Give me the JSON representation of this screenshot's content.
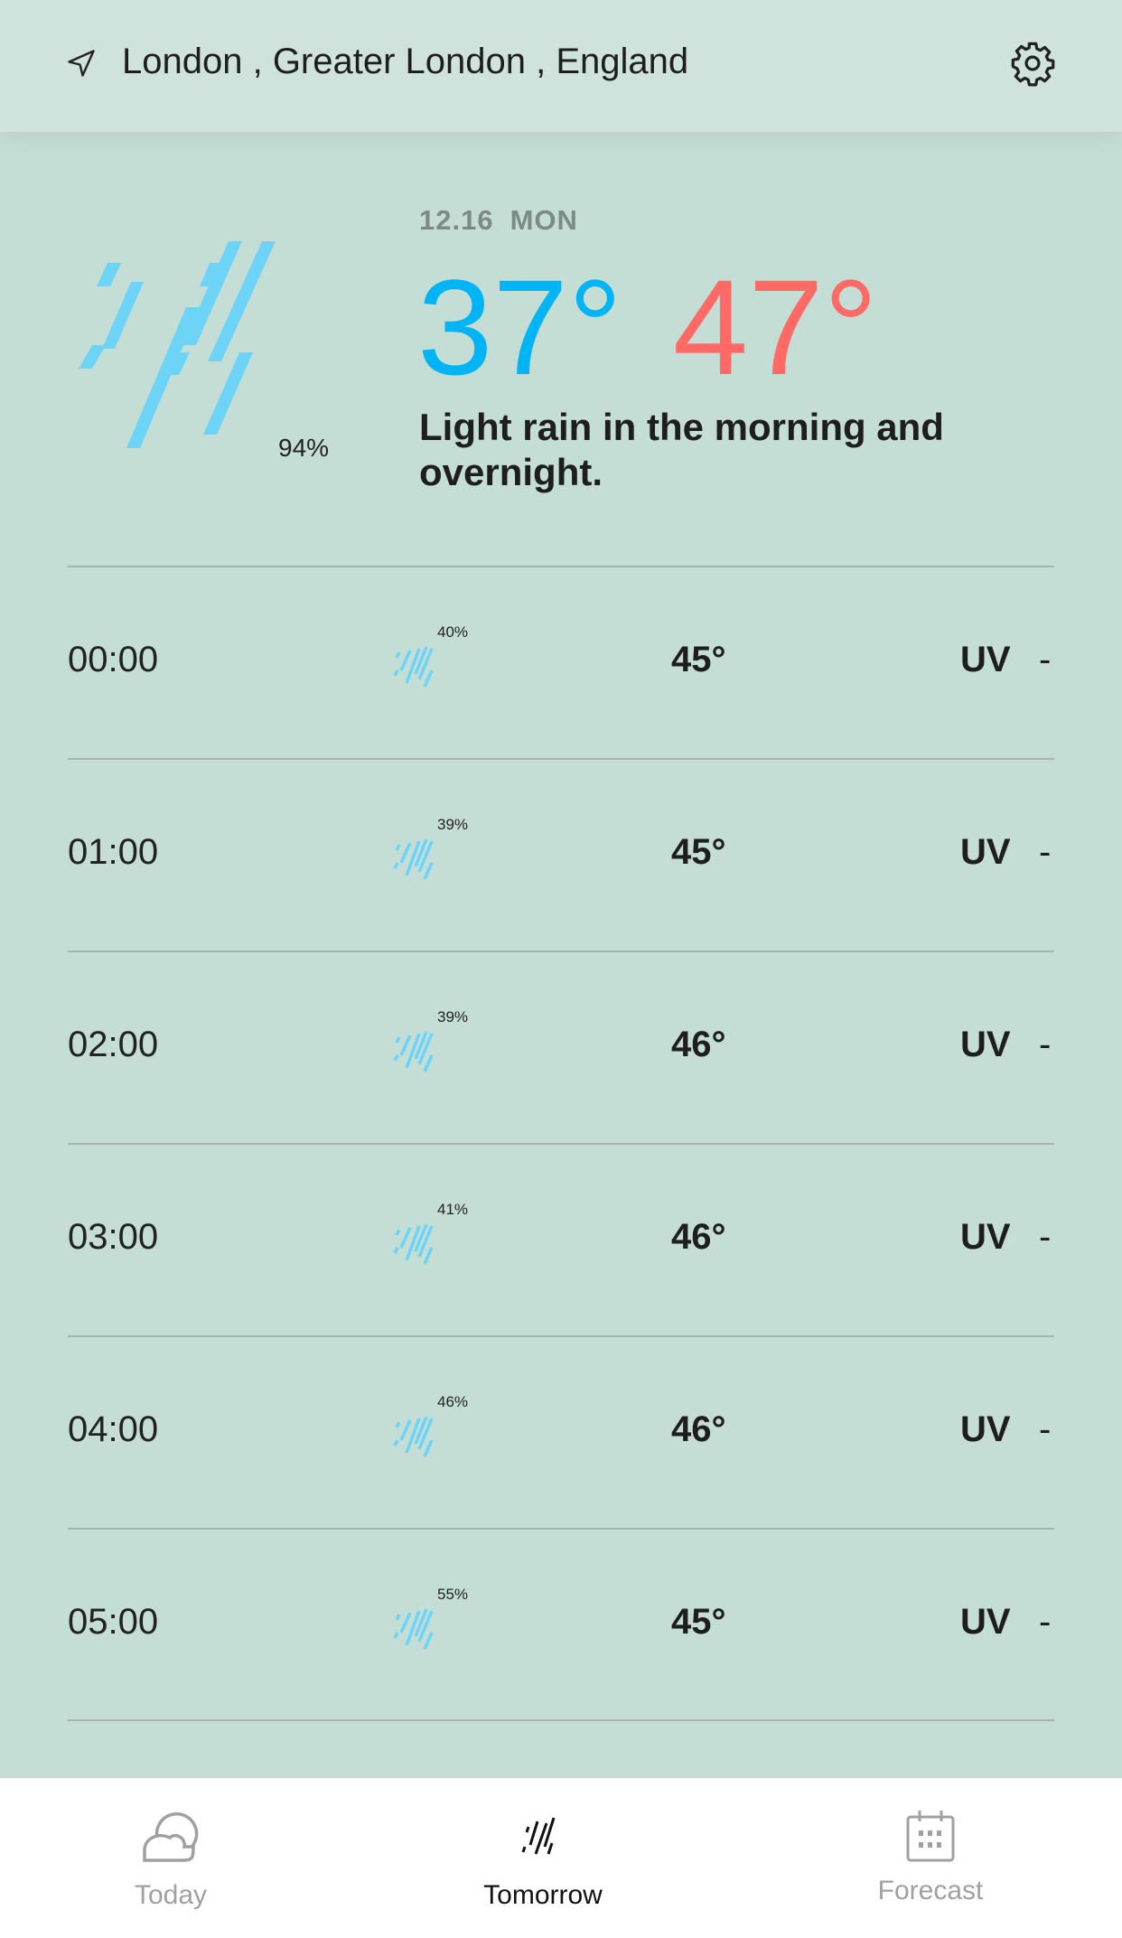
{
  "header": {
    "location": "London , Greater London , England",
    "location_icon": "navigation-arrow-icon",
    "settings_icon": "gear-icon"
  },
  "summary": {
    "date": "12.16",
    "weekday": "MON",
    "low": "37°",
    "high": "47°",
    "precip": "94%",
    "description": "Light rain in the morning and overnight.",
    "icon": "rain-icon",
    "colors": {
      "low": "#00b4f5",
      "high": "#ff6a66",
      "rain": "#6dd3f7"
    }
  },
  "hours": [
    {
      "time": "00:00",
      "precip": "40%",
      "temp": "45°",
      "uv_label": "UV",
      "uv": "-"
    },
    {
      "time": "01:00",
      "precip": "39%",
      "temp": "45°",
      "uv_label": "UV",
      "uv": "-"
    },
    {
      "time": "02:00",
      "precip": "39%",
      "temp": "46°",
      "uv_label": "UV",
      "uv": "-"
    },
    {
      "time": "03:00",
      "precip": "41%",
      "temp": "46°",
      "uv_label": "UV",
      "uv": "-"
    },
    {
      "time": "04:00",
      "precip": "46%",
      "temp": "46°",
      "uv_label": "UV",
      "uv": "-"
    },
    {
      "time": "05:00",
      "precip": "55%",
      "temp": "45°",
      "uv_label": "UV",
      "uv": "-"
    }
  ],
  "tabs": [
    {
      "label": "Today",
      "icon": "partly-cloudy-icon",
      "active": false
    },
    {
      "label": "Tomorrow",
      "icon": "rain-icon",
      "active": true
    },
    {
      "label": "Forecast",
      "icon": "calendar-icon",
      "active": false
    }
  ]
}
